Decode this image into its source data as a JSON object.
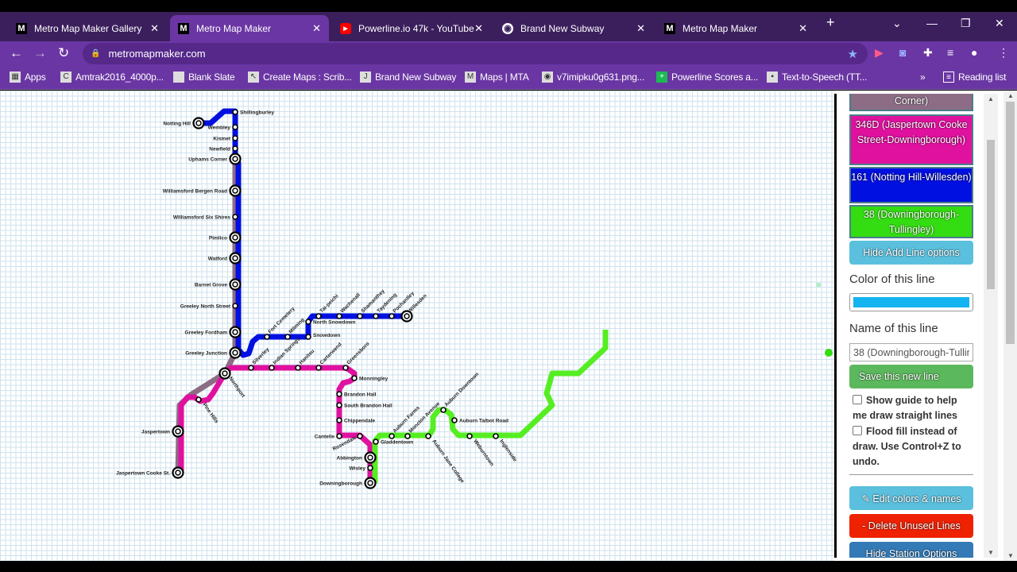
{
  "browser": {
    "tabs": [
      {
        "title": "Metro Map Maker Gallery",
        "icon": "M"
      },
      {
        "title": "Metro Map Maker",
        "icon": "M"
      },
      {
        "title": "Powerline.io 47k - YouTube",
        "icon": "youtube-icon"
      },
      {
        "title": "Brand New Subway",
        "icon": "globe-icon"
      },
      {
        "title": "Metro Map Maker",
        "icon": "M"
      }
    ],
    "active_tab": 1,
    "url": "metromapmaker.com",
    "bookmarks": [
      "Apps",
      "Amtrak2016_4000p...",
      "Blank Slate",
      "Create Maps : Scrib...",
      "Brand New Subway",
      "Maps | MTA",
      "v7imipku0g631.png...",
      "Powerline Scores a...",
      "Text-to-Speech (TT..."
    ],
    "reading_list": "Reading list"
  },
  "map": {
    "colors": {
      "grey": "#8c6d85",
      "pink": "#e0119f",
      "blue": "#0010e0",
      "green": "#55ee22"
    },
    "lines": {
      "blue": [
        "Notting Hill",
        "Shillingburley",
        "Wembley",
        "Kismet",
        "Newfield",
        "Uphams Corner",
        "Williamsford Bergen Road",
        "Williamsford Six Shires",
        "Pimlico",
        "Watford",
        "Barnet Grove",
        "Greeley North Street",
        "Greeley Fordham",
        "Greeley Junction",
        "Fort Cemetery",
        "Milming",
        "Snowdown",
        "North Snowdown",
        "Tai-peichi",
        "Wachenall",
        "Shamanthey",
        "Taydening",
        "Pochantley",
        "Willesden"
      ],
      "pink": [
        "Jaspertown Cooke St.",
        "Jaspertown",
        "Pine Hills",
        "Northport",
        "Silverley",
        "Indian Springs",
        "Hanitsu",
        "Carterwend",
        "Greensboro",
        "Monningley",
        "Brandon Hall",
        "South Brandon Hall",
        "Chippendale",
        "Cantelle",
        "Rosendale",
        "Abbington",
        "Wisley",
        "Downingborough"
      ],
      "green": [
        "Gladdentown",
        "Auburn Farms",
        "Moncton Avenue",
        "Auburn Jane College",
        "Auburn Downtown",
        "Auburn Talbot Road",
        "Weburntown",
        "Inglenside"
      ]
    }
  },
  "panel": {
    "line_buttons": [
      {
        "label": "Corner)",
        "color": "#8c6d85"
      },
      {
        "label": "346D (Jaspertown Cooke Street-Downingborough)",
        "color": "#e0119f"
      },
      {
        "label": "161 (Notting Hill-Willesden)",
        "color": "#0010e0"
      },
      {
        "label": "38 (Downingborough-Tullingley)",
        "color": "#33dd11"
      }
    ],
    "hide_add_line": "Hide Add Line options",
    "color_label": "Color of this line",
    "color_value": "#14b4f0",
    "name_label": "Name of this line",
    "name_value": "38 (Downingborough-Tullingley)",
    "save_line": "Save this new line",
    "guide_label": "Show guide to help me draw straight lines",
    "flood_label": "Flood fill instead of draw. Use Control+Z to undo.",
    "edit_colors": "✎ Edit colors & names",
    "delete_unused": "- Delete Unused Lines",
    "hide_station": "Hide Station Options"
  }
}
